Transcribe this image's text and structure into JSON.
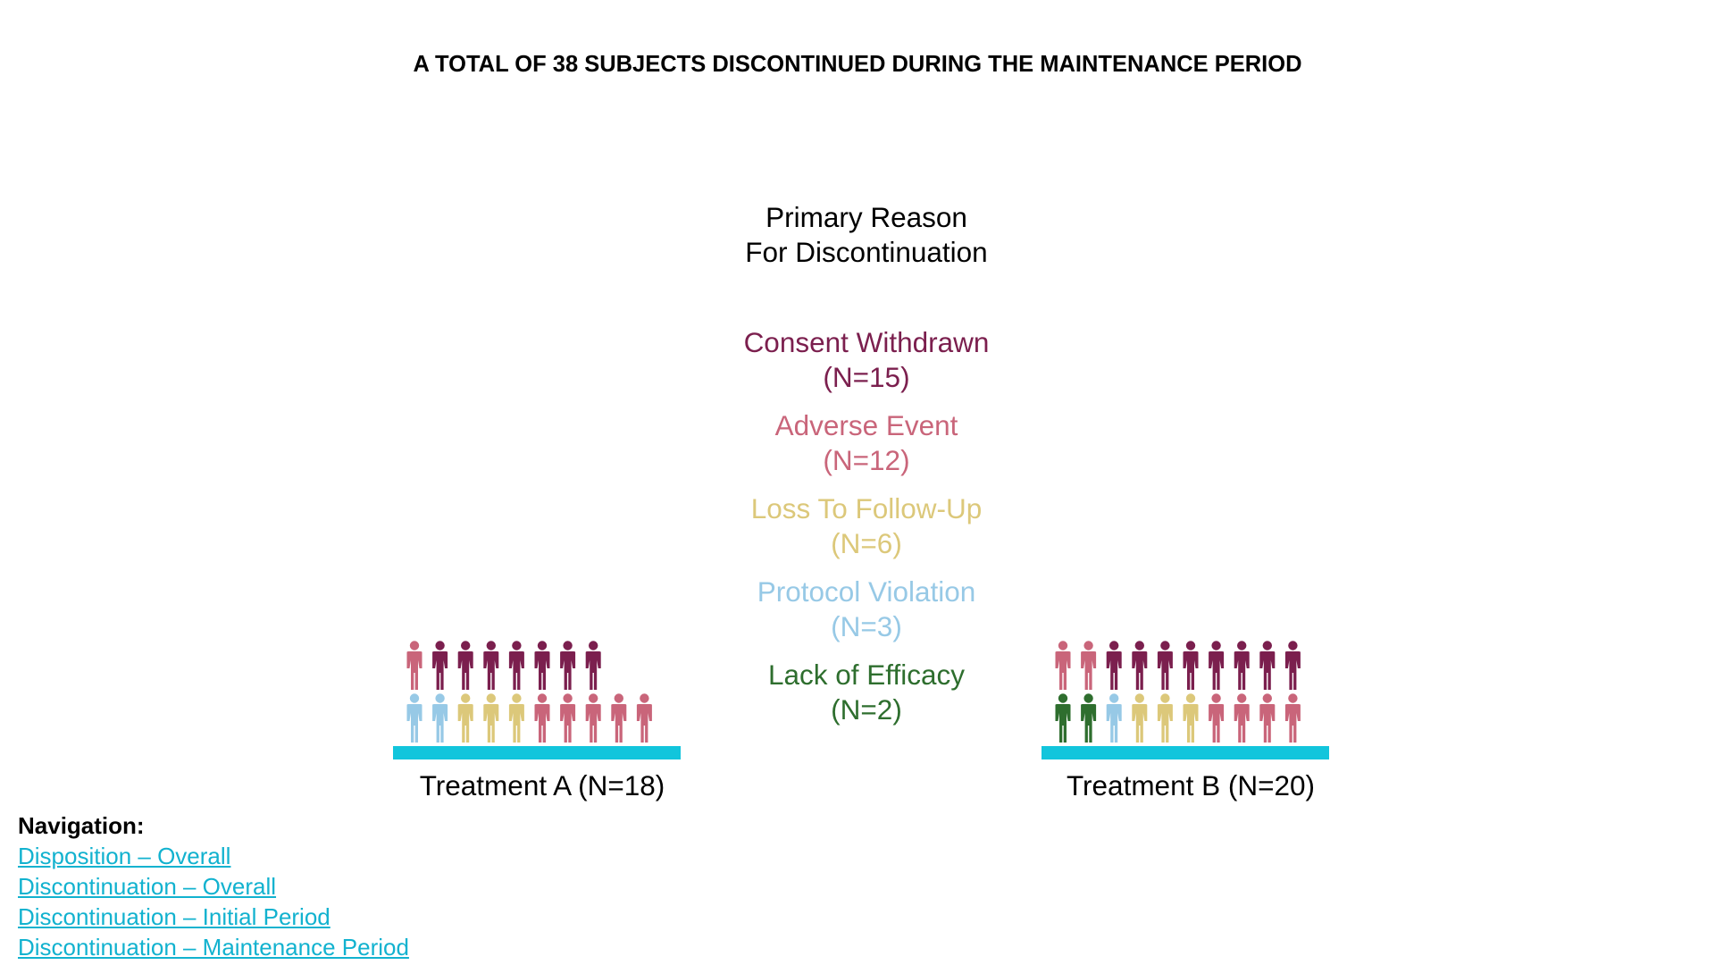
{
  "title": "A TOTAL OF 38 SUBJECTS DISCONTINUED DURING THE MAINTENANCE PERIOD",
  "legend": {
    "heading_line1": "Primary Reason",
    "heading_line2": "For Discontinuation"
  },
  "chart_data": {
    "type": "pictograph",
    "title": "A TOTAL OF 38 SUBJECTS DISCONTINUED DURING THE MAINTENANCE PERIOD",
    "categories": [
      "Consent Withdrawn",
      "Adverse Event",
      "Loss To Follow-Up",
      "Protocol Violation",
      "Lack of Efficacy"
    ],
    "category_labels": [
      {
        "name": "Consent Withdrawn",
        "count": "(N=15)",
        "color": "#7b1f4e"
      },
      {
        "name": "Adverse Event",
        "count": "(N=12)",
        "color": "#c9657a"
      },
      {
        "name": "Loss To Follow-Up",
        "count": "(N=6)",
        "color": "#dcc87a"
      },
      {
        "name": "Protocol Violation",
        "count": "(N=3)",
        "color": "#97c9e6"
      },
      {
        "name": "Lack of Efficacy",
        "count": "(N=2)",
        "color": "#2e6e2e"
      }
    ],
    "totals": [
      15,
      12,
      6,
      3,
      2
    ],
    "groups": [
      {
        "label": "Treatment A (N=18)",
        "n": 18,
        "bottom_row": [
          "Protocol Violation",
          "Protocol Violation",
          "Loss To Follow-Up",
          "Loss To Follow-Up",
          "Loss To Follow-Up",
          "Adverse Event",
          "Adverse Event",
          "Adverse Event",
          "Adverse Event",
          "Adverse Event"
        ],
        "top_row": [
          "Adverse Event",
          "Consent Withdrawn",
          "Consent Withdrawn",
          "Consent Withdrawn",
          "Consent Withdrawn",
          "Consent Withdrawn",
          "Consent Withdrawn",
          "Consent Withdrawn"
        ]
      },
      {
        "label": "Treatment B (N=20)",
        "n": 20,
        "bottom_row": [
          "Lack of Efficacy",
          "Lack of Efficacy",
          "Protocol Violation",
          "Loss To Follow-Up",
          "Loss To Follow-Up",
          "Loss To Follow-Up",
          "Adverse Event",
          "Adverse Event",
          "Adverse Event",
          "Adverse Event"
        ],
        "top_row": [
          "Adverse Event",
          "Adverse Event",
          "Consent Withdrawn",
          "Consent Withdrawn",
          "Consent Withdrawn",
          "Consent Withdrawn",
          "Consent Withdrawn",
          "Consent Withdrawn",
          "Consent Withdrawn",
          "Consent Withdrawn"
        ]
      }
    ],
    "icon": "person-icon",
    "base_color": "#12c5dc"
  },
  "navigation": {
    "title": "Navigation:",
    "links": [
      "Disposition – Overall",
      "Discontinuation – Overall",
      "Discontinuation – Initial Period",
      "Discontinuation – Maintenance Period"
    ],
    "link_color": "#12b2cf"
  }
}
